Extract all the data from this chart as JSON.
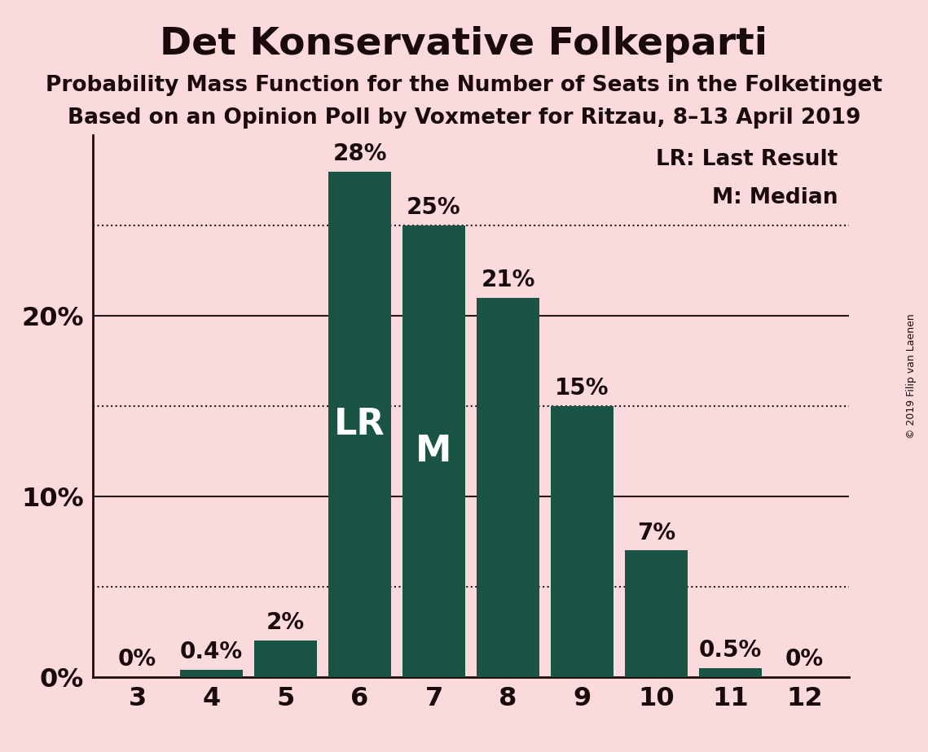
{
  "title": "Det Konservative Folkeparti",
  "subtitle1": "Probability Mass Function for the Number of Seats in the Folketinget",
  "subtitle2": "Based on an Opinion Poll by Voxmeter for Ritzau, 8–13 April 2019",
  "copyright": "© 2019 Filip van Laenen",
  "categories": [
    3,
    4,
    5,
    6,
    7,
    8,
    9,
    10,
    11,
    12
  ],
  "values": [
    0.0,
    0.4,
    2.0,
    28.0,
    25.0,
    21.0,
    15.0,
    7.0,
    0.5,
    0.0
  ],
  "bar_labels": [
    "0%",
    "0.4%",
    "2%",
    "28%",
    "25%",
    "21%",
    "15%",
    "7%",
    "0.5%",
    "0%"
  ],
  "bar_color": "#1a5444",
  "background_color": "#fadadd",
  "title_color": "#1a0a0a",
  "yticks": [
    0,
    10,
    20
  ],
  "ytick_labels": [
    "0%",
    "10%",
    "20%"
  ],
  "dotted_lines": [
    5,
    15,
    25
  ],
  "ylim": [
    0,
    30
  ],
  "lr_bar_index": 3,
  "median_bar_index": 4,
  "lr_label": "LR",
  "median_label": "M",
  "legend_lr": "LR: Last Result",
  "legend_m": "M: Median",
  "bar_label_fontsize": 20,
  "title_fontsize": 34,
  "subtitle_fontsize": 19,
  "axis_fontsize": 23,
  "inner_label_fontsize": 32,
  "legend_fontsize": 19,
  "copyright_fontsize": 9
}
